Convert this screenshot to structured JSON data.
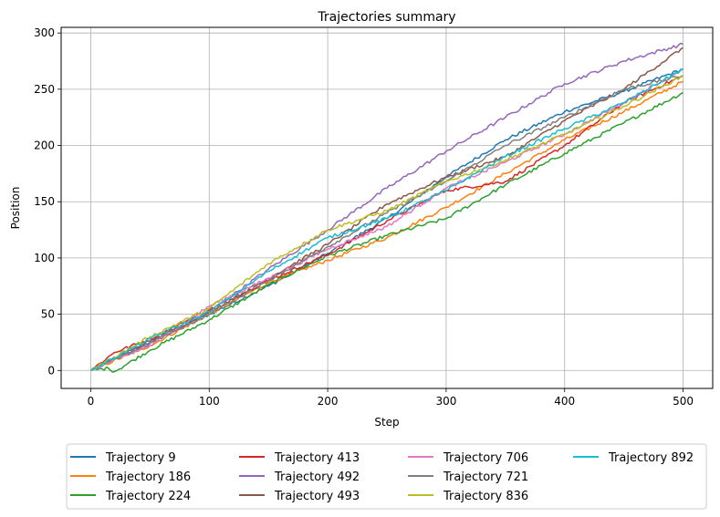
{
  "chart_data": {
    "type": "line",
    "title": "Trajectories summary",
    "xlabel": "Step",
    "ylabel": "Position",
    "xlim": [
      -25,
      525
    ],
    "ylim": [
      -16,
      305
    ],
    "xticks": [
      0,
      100,
      200,
      300,
      400,
      500
    ],
    "yticks": [
      0,
      50,
      100,
      150,
      200,
      250,
      300
    ],
    "grid": true,
    "legend_position": "bottom-center",
    "legend_columns": 4,
    "series": [
      {
        "name": "Trajectory 9",
        "color": "#1f77b4",
        "x": [
          0,
          50,
          100,
          150,
          200,
          250,
          300,
          350,
          400,
          450,
          500
        ],
        "y": [
          0,
          25,
          50,
          75,
          104,
          135,
          172,
          205,
          230,
          248,
          268
        ]
      },
      {
        "name": "Trajectory 186",
        "color": "#ff7f0e",
        "x": [
          0,
          50,
          100,
          150,
          200,
          250,
          300,
          350,
          400,
          450,
          500
        ],
        "y": [
          0,
          22,
          50,
          78,
          98,
          118,
          145,
          175,
          205,
          230,
          257
        ]
      },
      {
        "name": "Trajectory 224",
        "color": "#2ca02c",
        "x": [
          0,
          15,
          20,
          50,
          100,
          150,
          200,
          250,
          300,
          350,
          400,
          450,
          500
        ],
        "y": [
          0,
          2,
          -1,
          18,
          45,
          76,
          102,
          120,
          135,
          165,
          193,
          220,
          247
        ]
      },
      {
        "name": "Trajectory 413",
        "color": "#d62728",
        "x": [
          0,
          20,
          50,
          100,
          150,
          200,
          250,
          300,
          350,
          400,
          450,
          500
        ],
        "y": [
          0,
          16,
          28,
          54,
          80,
          103,
          133,
          160,
          168,
          200,
          238,
          262
        ]
      },
      {
        "name": "Trajectory 492",
        "color": "#9467bd",
        "x": [
          0,
          50,
          100,
          150,
          200,
          250,
          300,
          350,
          400,
          450,
          500
        ],
        "y": [
          0,
          25,
          52,
          90,
          125,
          162,
          195,
          225,
          255,
          275,
          290
        ]
      },
      {
        "name": "Trajectory 493",
        "color": "#8c564b",
        "x": [
          0,
          50,
          100,
          150,
          200,
          250,
          300,
          350,
          400,
          450,
          500
        ],
        "y": [
          0,
          26,
          52,
          82,
          112,
          148,
          172,
          190,
          222,
          250,
          287
        ]
      },
      {
        "name": "Trajectory 706",
        "color": "#e377c2",
        "x": [
          0,
          50,
          100,
          150,
          200,
          250,
          300,
          350,
          400,
          450,
          500
        ],
        "y": [
          0,
          22,
          57,
          82,
          108,
          128,
          162,
          185,
          210,
          238,
          268
        ]
      },
      {
        "name": "Trajectory 721",
        "color": "#7f7f7f",
        "x": [
          0,
          50,
          100,
          150,
          200,
          250,
          300,
          350,
          400,
          450,
          500
        ],
        "y": [
          0,
          24,
          50,
          80,
          110,
          140,
          168,
          200,
          225,
          250,
          262
        ]
      },
      {
        "name": "Trajectory 836",
        "color": "#bcbd22",
        "x": [
          0,
          50,
          100,
          150,
          200,
          250,
          300,
          350,
          400,
          450,
          500
        ],
        "y": [
          0,
          30,
          55,
          95,
          125,
          142,
          168,
          187,
          210,
          235,
          262
        ]
      },
      {
        "name": "Trajectory 892",
        "color": "#17becf",
        "x": [
          0,
          50,
          100,
          150,
          200,
          250,
          300,
          350,
          400,
          450,
          500
        ],
        "y": [
          0,
          28,
          52,
          88,
          118,
          135,
          160,
          190,
          215,
          238,
          268
        ]
      }
    ]
  }
}
